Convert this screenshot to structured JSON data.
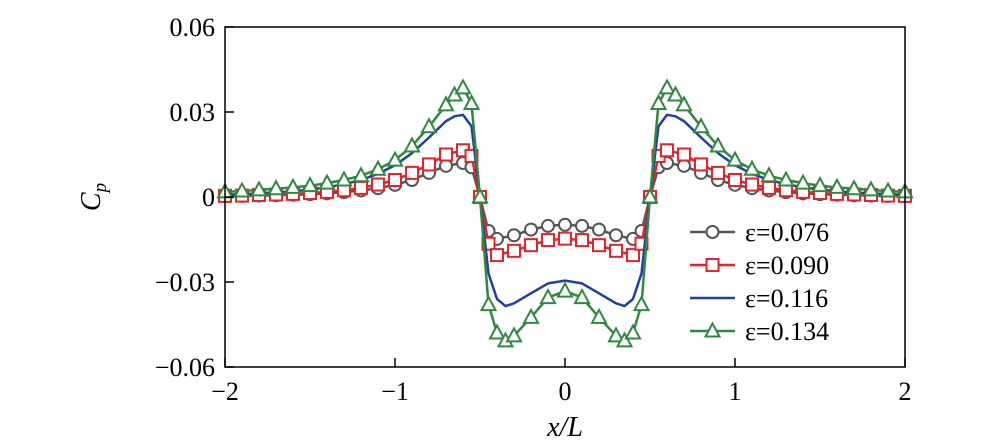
{
  "chart_data": {
    "type": "line",
    "title": "",
    "xlabel": "x/L",
    "ylabel": "C_p",
    "xlim": [
      -2,
      2
    ],
    "ylim": [
      -0.06,
      0.06
    ],
    "xticks": [
      -2,
      -1,
      0,
      1,
      2
    ],
    "xtick_labels": [
      "−2",
      "−1",
      "0",
      "1",
      "2"
    ],
    "yticks": [
      -0.06,
      -0.03,
      0,
      0.03,
      0.06
    ],
    "ytick_labels": [
      "−0.06",
      "−0.03",
      "0",
      "0.03",
      "0.06"
    ],
    "grid": false,
    "legend_position": "lower-right",
    "series": [
      {
        "name": "ε=0.076",
        "color": "#555555",
        "marker": "circle",
        "x": [
          -2.0,
          -1.9,
          -1.8,
          -1.7,
          -1.6,
          -1.5,
          -1.4,
          -1.3,
          -1.2,
          -1.1,
          -1.0,
          -0.9,
          -0.8,
          -0.7,
          -0.6,
          -0.55,
          -0.5,
          -0.45,
          -0.4,
          -0.3,
          -0.2,
          -0.1,
          0.0,
          0.1,
          0.2,
          0.3,
          0.4,
          0.45,
          0.5,
          0.55,
          0.6,
          0.7,
          0.8,
          0.9,
          1.0,
          1.1,
          1.2,
          1.3,
          1.4,
          1.5,
          1.6,
          1.7,
          1.8,
          1.9,
          2.0
        ],
        "y": [
          0.0003,
          0.0004,
          0.0005,
          0.0006,
          0.0008,
          0.001,
          0.0013,
          0.0017,
          0.0023,
          0.0031,
          0.0043,
          0.006,
          0.0085,
          0.011,
          0.012,
          0.0105,
          0.0,
          -0.012,
          -0.0148,
          -0.0135,
          -0.0115,
          -0.0102,
          -0.0098,
          -0.0102,
          -0.0115,
          -0.0135,
          -0.0148,
          -0.012,
          0.0,
          0.0105,
          0.012,
          0.011,
          0.0085,
          0.006,
          0.0043,
          0.0031,
          0.0023,
          0.0017,
          0.0013,
          0.001,
          0.0008,
          0.0006,
          0.0005,
          0.0004,
          0.0003
        ]
      },
      {
        "name": "ε=0.090",
        "color": "#e8222b",
        "marker": "square",
        "x": [
          -2.0,
          -1.9,
          -1.8,
          -1.7,
          -1.6,
          -1.5,
          -1.4,
          -1.3,
          -1.2,
          -1.1,
          -1.0,
          -0.9,
          -0.8,
          -0.7,
          -0.6,
          -0.55,
          -0.5,
          -0.45,
          -0.4,
          -0.3,
          -0.2,
          -0.1,
          0.0,
          0.1,
          0.2,
          0.3,
          0.4,
          0.45,
          0.5,
          0.55,
          0.6,
          0.7,
          0.8,
          0.9,
          1.0,
          1.1,
          1.2,
          1.3,
          1.4,
          1.5,
          1.6,
          1.7,
          1.8,
          1.9,
          2.0
        ],
        "y": [
          0.0004,
          0.0005,
          0.0007,
          0.0009,
          0.0011,
          0.0014,
          0.0018,
          0.0024,
          0.0032,
          0.0044,
          0.006,
          0.0085,
          0.0115,
          0.015,
          0.0165,
          0.0145,
          0.0,
          -0.0165,
          -0.0205,
          -0.019,
          -0.017,
          -0.0152,
          -0.0147,
          -0.0152,
          -0.017,
          -0.019,
          -0.0205,
          -0.0165,
          0.0,
          0.0145,
          0.0165,
          0.015,
          0.0115,
          0.0085,
          0.006,
          0.0044,
          0.0032,
          0.0024,
          0.0018,
          0.0014,
          0.0011,
          0.0009,
          0.0007,
          0.0005,
          0.0004
        ]
      },
      {
        "name": "ε=0.116",
        "color": "#1f3fa8",
        "marker": "none",
        "x": [
          -2.0,
          -1.9,
          -1.8,
          -1.7,
          -1.6,
          -1.5,
          -1.4,
          -1.3,
          -1.2,
          -1.1,
          -1.0,
          -0.9,
          -0.8,
          -0.7,
          -0.65,
          -0.6,
          -0.55,
          -0.5,
          -0.45,
          -0.4,
          -0.35,
          -0.3,
          -0.2,
          -0.1,
          0.0,
          0.1,
          0.2,
          0.3,
          0.35,
          0.4,
          0.45,
          0.5,
          0.55,
          0.6,
          0.65,
          0.7,
          0.8,
          0.9,
          1.0,
          1.1,
          1.2,
          1.3,
          1.4,
          1.5,
          1.6,
          1.7,
          1.8,
          1.9,
          2.0
        ],
        "y": [
          0.0008,
          0.001,
          0.0013,
          0.0016,
          0.002,
          0.0026,
          0.0034,
          0.0045,
          0.006,
          0.0082,
          0.0112,
          0.0155,
          0.021,
          0.0268,
          0.0285,
          0.029,
          0.025,
          0.0,
          -0.027,
          -0.036,
          -0.0385,
          -0.0375,
          -0.034,
          -0.0305,
          -0.0295,
          -0.0305,
          -0.034,
          -0.0375,
          -0.0385,
          -0.036,
          -0.027,
          0.0,
          0.025,
          0.029,
          0.0285,
          0.0268,
          0.021,
          0.0155,
          0.0112,
          0.0082,
          0.006,
          0.0045,
          0.0034,
          0.0026,
          0.002,
          0.0016,
          0.0013,
          0.001,
          0.0008
        ]
      },
      {
        "name": "ε=0.134",
        "color": "#2f8a3e",
        "marker": "triangle",
        "x": [
          -2.0,
          -1.9,
          -1.8,
          -1.7,
          -1.6,
          -1.5,
          -1.4,
          -1.3,
          -1.2,
          -1.1,
          -1.0,
          -0.9,
          -0.8,
          -0.7,
          -0.65,
          -0.6,
          -0.55,
          -0.5,
          -0.45,
          -0.4,
          -0.35,
          -0.3,
          -0.2,
          -0.1,
          0.0,
          0.1,
          0.2,
          0.3,
          0.35,
          0.4,
          0.45,
          0.5,
          0.55,
          0.6,
          0.65,
          0.7,
          0.8,
          0.9,
          1.0,
          1.1,
          1.2,
          1.3,
          1.4,
          1.5,
          1.6,
          1.7,
          1.8,
          1.9,
          2.0
        ],
        "y": [
          0.0018,
          0.0021,
          0.0025,
          0.0029,
          0.0034,
          0.004,
          0.0049,
          0.006,
          0.0075,
          0.0098,
          0.013,
          0.018,
          0.0248,
          0.0325,
          0.036,
          0.0385,
          0.033,
          0.0,
          -0.038,
          -0.048,
          -0.0508,
          -0.049,
          -0.0425,
          -0.0355,
          -0.0332,
          -0.0355,
          -0.0425,
          -0.049,
          -0.0508,
          -0.048,
          -0.038,
          0.0,
          0.033,
          0.0385,
          0.036,
          0.0325,
          0.0248,
          0.018,
          0.013,
          0.0098,
          0.0075,
          0.006,
          0.0049,
          0.004,
          0.0034,
          0.0029,
          0.0025,
          0.0021,
          0.0018
        ]
      }
    ]
  }
}
